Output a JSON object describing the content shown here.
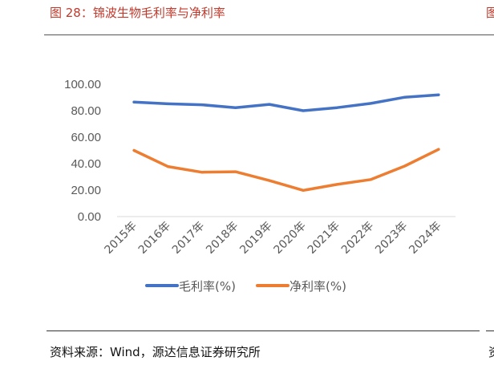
{
  "header": {
    "figure_title": "图 28：锦波生物毛利率与净利率",
    "edge_glyph": "图"
  },
  "footer": {
    "source": "资料来源：Wind，源达信息证券研究所",
    "edge_glyph": "资"
  },
  "colors": {
    "title": "#c0392b",
    "series_gross": "#4472c4",
    "series_net": "#ed7d31",
    "gridline": "#d9d9d9",
    "tick_text": "#595959"
  },
  "chart_data": {
    "type": "line",
    "categories": [
      "2015年",
      "2016年",
      "2017年",
      "2018年",
      "2019年",
      "2020年",
      "2021年",
      "2022年",
      "2023年",
      "2024年"
    ],
    "series": [
      {
        "name": "毛利率(%)",
        "color": "#4472c4",
        "values": [
          86.5,
          85.2,
          84.5,
          82.3,
          84.8,
          80.0,
          82.3,
          85.5,
          90.2,
          92.0
        ]
      },
      {
        "name": "净利率(%)",
        "color": "#ed7d31",
        "values": [
          50.0,
          37.8,
          33.5,
          33.9,
          27.2,
          19.8,
          24.3,
          28.0,
          38.2,
          50.8
        ]
      }
    ],
    "y_ticks": [
      "0.00",
      "20.00",
      "40.00",
      "60.00",
      "80.00",
      "100.00"
    ],
    "ylim": [
      0,
      100
    ],
    "grid": "baseline only",
    "legend_position": "bottom"
  }
}
